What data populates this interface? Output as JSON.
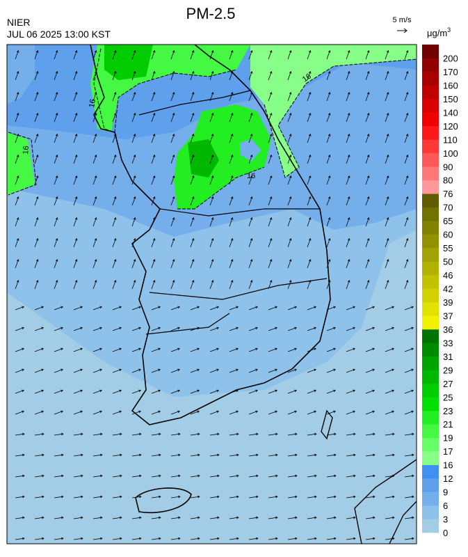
{
  "header": {
    "title": "PM-2.5",
    "agency": "NIER",
    "timestamp": "JUL 06 2025 13:00 KST"
  },
  "wind_legend": {
    "label": "5 m/s"
  },
  "colorbar": {
    "unit": "μg/m",
    "unit_exponent": "3",
    "levels": [
      0,
      3,
      6,
      9,
      12,
      16,
      17,
      19,
      21,
      23,
      25,
      27,
      29,
      31,
      33,
      36,
      37,
      39,
      42,
      46,
      50,
      55,
      60,
      65,
      70,
      76,
      80,
      90,
      100,
      110,
      120,
      140,
      150,
      160,
      170,
      200
    ],
    "colors": [
      "#a3cde6",
      "#8ec2ea",
      "#74afec",
      "#5ea0ec",
      "#3f90f0",
      "#88ff88",
      "#66ff66",
      "#44f844",
      "#22ee22",
      "#00e000",
      "#00cc00",
      "#00b800",
      "#00a400",
      "#008c00",
      "#007400",
      "#f2f200",
      "#e2e200",
      "#d2d200",
      "#c2c200",
      "#b2b200",
      "#a2a200",
      "#929200",
      "#828200",
      "#727200",
      "#625c00",
      "#ff9898",
      "#ff7878",
      "#ff5858",
      "#ff3838",
      "#ff1818",
      "#f00000",
      "#d80000",
      "#c00000",
      "#a80000",
      "#900000",
      "#700000"
    ]
  },
  "contour_labels": [
    "16",
    "16",
    "16",
    "16"
  ]
}
